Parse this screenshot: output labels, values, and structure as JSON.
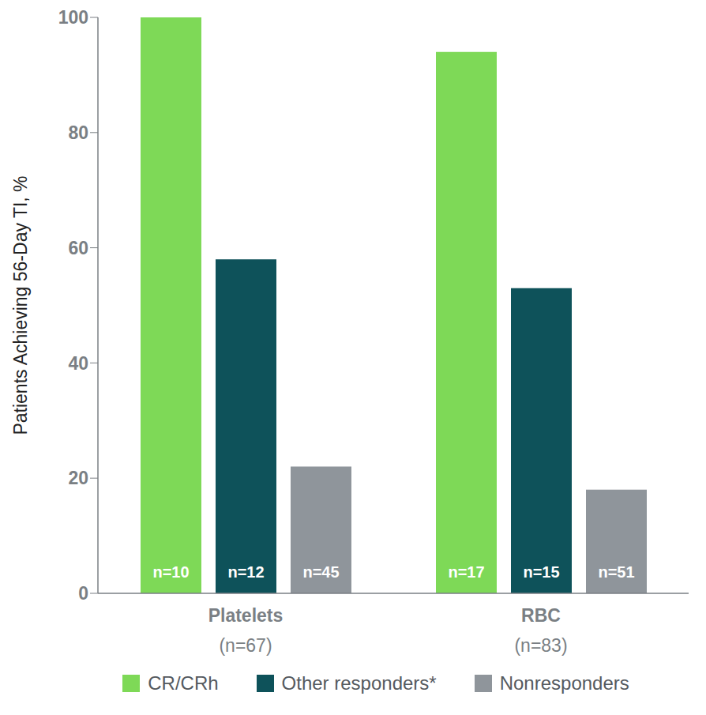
{
  "chart_data": {
    "type": "bar",
    "y_label": "Patients Achieving 56-Day TI, %",
    "categories": [
      "Platelets",
      "RBC"
    ],
    "category_counts": [
      "(n=67)",
      "(n=83)"
    ],
    "series": [
      {
        "name": "CR/CRh",
        "color": "#7ed957",
        "values": [
          100,
          94
        ],
        "bar_labels": [
          "n=10",
          "n=17"
        ]
      },
      {
        "name": "Other responders*",
        "color": "#0e525a",
        "values": [
          58,
          53
        ],
        "bar_labels": [
          "n=12",
          "n=15"
        ]
      },
      {
        "name": "Nonresponders",
        "color": "#8f959b",
        "values": [
          22,
          18
        ],
        "bar_labels": [
          "n=45",
          "n=51"
        ]
      }
    ],
    "ylim": [
      0,
      100
    ],
    "yticks": [
      0,
      20,
      40,
      60,
      80,
      100
    ],
    "grid": false,
    "legend": "bottom"
  }
}
